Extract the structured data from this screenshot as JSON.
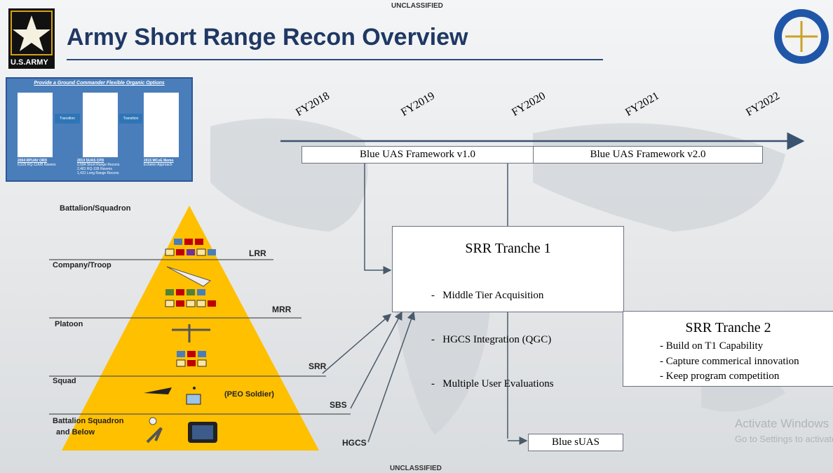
{
  "header": {
    "classification_top": "UNCLASSIFIED",
    "title": "Army Short Range Recon Overview",
    "army_logo": "U.S.ARMY"
  },
  "thumbnail": {
    "heading": "Provide a Ground Commander Flexible Organic Options",
    "transitions": [
      "Transition",
      "Transition"
    ],
    "documents": [
      {
        "title": "2004 RPUAV ORD",
        "bullets": [
          "6,525 RQ-11A/B Ravens"
        ]
      },
      {
        "title": "2013 SUAS CPD",
        "bullets": [
          "2,584 Short Range Recons",
          "2,481 RQ-11B Ravens",
          "1,431 Long Range Recons"
        ]
      },
      {
        "title": "2015 MCoE Memo",
        "bullets": [
          "Echelon Approach"
        ]
      }
    ]
  },
  "timeline": {
    "years": [
      "FY2018",
      "FY2019",
      "FY2020",
      "FY2021",
      "FY2022"
    ],
    "framework_v1": "Blue UAS Framework v1.0",
    "framework_v2": "Blue UAS Framework v2.0"
  },
  "tranche1": {
    "title": "SRR Tranche 1",
    "items": [
      "-   Middle Tier Acquisition",
      "-   HGCS Integration (QGC)",
      "-   Multiple User Evaluations"
    ]
  },
  "tranche2": {
    "title": "SRR Tranche 2",
    "items": [
      "- Build on T1 Capability",
      "- Capture commerical innovation",
      "- Keep program competition"
    ]
  },
  "blue_suas": "Blue sUAS",
  "pyramid": {
    "echelons": [
      "Battalion/Squadron",
      "Company/Troop",
      "Platoon",
      "Squad",
      "Battalion Squadron",
      "and Below"
    ],
    "tiers": [
      "LRR",
      "MRR",
      "SRR",
      "SBS",
      "HGCS"
    ],
    "peo_soldier": "(PEO Soldier)"
  },
  "footer": {
    "classification_bottom": "UNCLASSIFIED"
  },
  "watermark": {
    "line1": "Activate Windows",
    "line2": "Go to Settings to activate Windows."
  }
}
